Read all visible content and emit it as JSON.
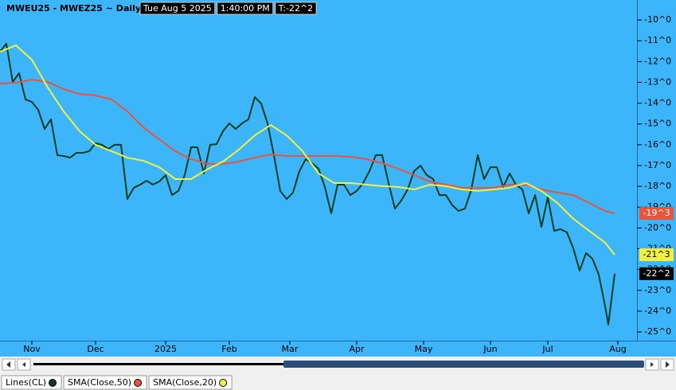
{
  "chart_data": {
    "type": "line",
    "title": "MWEU25 - MWEZ25 ~ Daily",
    "header_fields": [
      "Tue Aug 5 2025",
      "1:40:00 PM",
      "T:-22^2"
    ],
    "xlim": [
      0,
      200
    ],
    "xticks": [
      {
        "value": 10,
        "label": "Nov"
      },
      {
        "value": 30,
        "label": "Dec"
      },
      {
        "value": 52,
        "label": "2025"
      },
      {
        "value": 72,
        "label": "Feb"
      },
      {
        "value": 91,
        "label": "Mar"
      },
      {
        "value": 112,
        "label": "Apr"
      },
      {
        "value": 133,
        "label": "May"
      },
      {
        "value": 154,
        "label": "Jun"
      },
      {
        "value": 172,
        "label": "Jul"
      },
      {
        "value": 194,
        "label": "Aug"
      }
    ],
    "ylim": [
      -25.42,
      -9.04
    ],
    "yticks": [
      {
        "value": -10,
        "label": "-10^0"
      },
      {
        "value": -11,
        "label": "-11^0"
      },
      {
        "value": -12,
        "label": "-12^0"
      },
      {
        "value": -13,
        "label": "-13^0"
      },
      {
        "value": -14,
        "label": "-14^0"
      },
      {
        "value": -15,
        "label": "-15^0"
      },
      {
        "value": -16,
        "label": "-16^0"
      },
      {
        "value": -17,
        "label": "-17^0"
      },
      {
        "value": -18,
        "label": "-18^0"
      },
      {
        "value": -19,
        "label": "-19^0"
      },
      {
        "value": -20,
        "label": "-20^0"
      },
      {
        "value": -21,
        "label": "-21^0"
      },
      {
        "value": -22,
        "label": "-22^0"
      },
      {
        "value": -23,
        "label": "-23^0"
      },
      {
        "value": -24,
        "label": "-24^0"
      },
      {
        "value": -25,
        "label": "-25^0"
      }
    ],
    "series": [
      {
        "name": "Lines(CL)",
        "color": "#0b3d1c",
        "last_label": "-22^2",
        "x": [
          0,
          2,
          4,
          6,
          8,
          10,
          12,
          14,
          16,
          18,
          20,
          22,
          24,
          26,
          28,
          30,
          32,
          34,
          36,
          38,
          40,
          42,
          44,
          46,
          48,
          50,
          52,
          54,
          56,
          58,
          60,
          62,
          64,
          66,
          68,
          70,
          72,
          74,
          76,
          78,
          80,
          82,
          84,
          86,
          88,
          90,
          92,
          94,
          96,
          98,
          100,
          102,
          104,
          106,
          108,
          110,
          112,
          114,
          116,
          118,
          120,
          122,
          124,
          126,
          128,
          130,
          132,
          134,
          136,
          138,
          140,
          142,
          144,
          146,
          148,
          150,
          152,
          154,
          156,
          158,
          160,
          162,
          164,
          166,
          168,
          170,
          172,
          174,
          176,
          178,
          180,
          182,
          184,
          186,
          188,
          190,
          191,
          193
        ],
        "values": [
          -11.53,
          -11.14,
          -12.98,
          -12.56,
          -13.82,
          -13.94,
          -14.32,
          -15.24,
          -14.78,
          -16.5,
          -16.54,
          -16.62,
          -16.39,
          -16.39,
          -16.31,
          -15.93,
          -16.0,
          -16.2,
          -16.0,
          -16.0,
          -18.61,
          -18.07,
          -17.92,
          -17.73,
          -17.92,
          -17.77,
          -17.46,
          -18.42,
          -18.22,
          -17.46,
          -16.12,
          -16.12,
          -17.38,
          -16.0,
          -15.97,
          -15.35,
          -14.97,
          -15.24,
          -14.97,
          -14.78,
          -13.71,
          -14.02,
          -14.97,
          -16.5,
          -18.22,
          -18.61,
          -18.3,
          -17.27,
          -16.69,
          -16.89,
          -17.15,
          -18.03,
          -19.3,
          -17.92,
          -17.92,
          -18.42,
          -18.22,
          -17.84,
          -17.27,
          -16.5,
          -16.5,
          -17.84,
          -19.07,
          -18.68,
          -18.15,
          -17.27,
          -17.0,
          -17.46,
          -17.65,
          -18.42,
          -18.42,
          -18.91,
          -19.18,
          -19.07,
          -18.15,
          -16.5,
          -17.65,
          -17.08,
          -17.08,
          -18.03,
          -17.38,
          -17.92,
          -18.15,
          -19.3,
          -18.42,
          -19.95,
          -18.53,
          -20.14,
          -20.06,
          -20.21,
          -20.98,
          -22.05,
          -21.21,
          -21.48,
          -22.24,
          -23.77,
          -24.65,
          -22.2
        ]
      },
      {
        "name": "SMA(Close,50)",
        "color": "#e8553a",
        "last_label": "-19^3",
        "x": [
          0,
          5,
          10,
          15,
          20,
          25,
          30,
          35,
          40,
          45,
          50,
          55,
          60,
          65,
          70,
          75,
          80,
          85,
          90,
          95,
          100,
          105,
          110,
          115,
          120,
          125,
          130,
          135,
          140,
          145,
          150,
          155,
          160,
          165,
          170,
          175,
          180,
          185,
          190,
          193
        ],
        "values": [
          -13.06,
          -13.02,
          -12.87,
          -12.98,
          -13.33,
          -13.56,
          -13.63,
          -13.82,
          -14.4,
          -15.16,
          -15.74,
          -16.31,
          -16.69,
          -16.92,
          -16.92,
          -16.81,
          -16.62,
          -16.46,
          -16.54,
          -16.54,
          -16.54,
          -16.54,
          -16.58,
          -16.69,
          -16.89,
          -17.15,
          -17.46,
          -17.77,
          -17.92,
          -18.07,
          -18.07,
          -18.07,
          -17.92,
          -17.92,
          -18.15,
          -18.3,
          -18.42,
          -18.8,
          -19.18,
          -19.3
        ]
      },
      {
        "name": "SMA(Close,20)",
        "color": "#f2f23c",
        "last_label": "-21^3",
        "x": [
          0,
          5,
          10,
          15,
          20,
          25,
          30,
          35,
          40,
          45,
          50,
          55,
          60,
          65,
          70,
          75,
          80,
          85,
          90,
          95,
          100,
          105,
          110,
          115,
          120,
          125,
          130,
          135,
          140,
          145,
          150,
          155,
          160,
          165,
          170,
          175,
          180,
          185,
          190,
          193
        ],
        "values": [
          -11.53,
          -11.22,
          -11.91,
          -13.25,
          -14.4,
          -15.35,
          -16.0,
          -16.31,
          -16.62,
          -16.77,
          -17.08,
          -17.65,
          -17.65,
          -17.19,
          -16.81,
          -16.23,
          -15.55,
          -15.05,
          -15.55,
          -16.31,
          -17.38,
          -17.84,
          -17.84,
          -17.92,
          -17.99,
          -18.03,
          -18.15,
          -17.92,
          -17.99,
          -18.15,
          -18.22,
          -18.15,
          -18.07,
          -17.84,
          -18.22,
          -18.8,
          -19.56,
          -20.14,
          -20.71,
          -21.29
        ]
      }
    ]
  }
}
